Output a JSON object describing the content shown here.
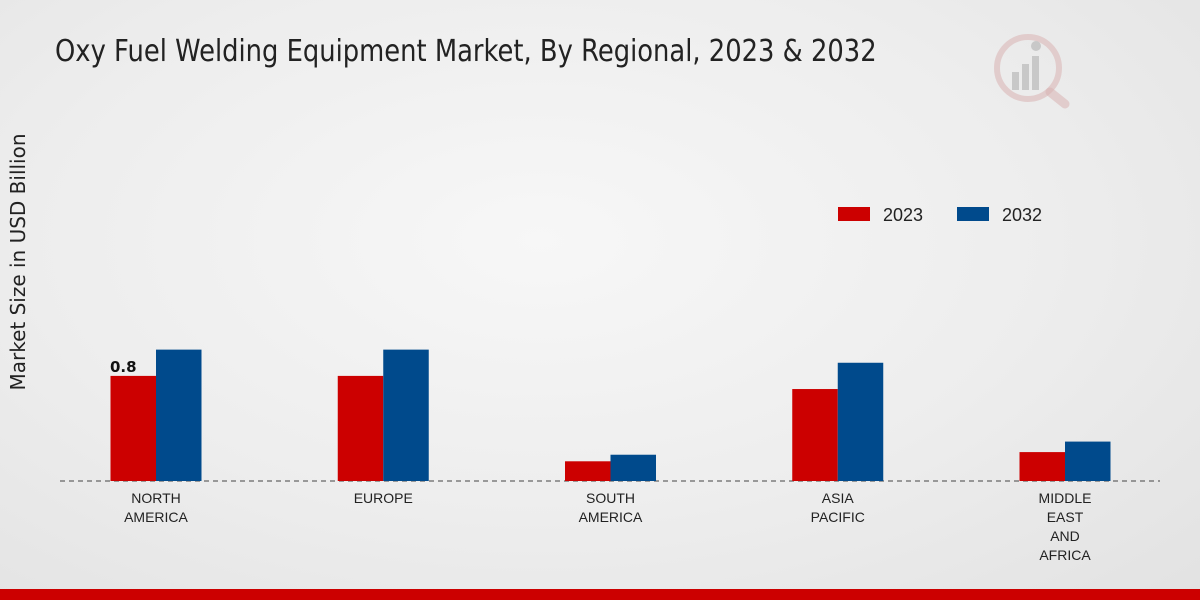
{
  "chart_data": {
    "type": "bar",
    "title": "Oxy Fuel Welding Equipment Market, By Regional, 2023 & 2032",
    "xlabel": "",
    "ylabel": "Market Size in USD Billion",
    "categories": [
      [
        "NORTH",
        "AMERICA"
      ],
      [
        "EUROPE"
      ],
      [
        "SOUTH",
        "AMERICA"
      ],
      [
        "ASIA",
        "PACIFIC"
      ],
      [
        "MIDDLE",
        "EAST",
        "AND",
        "AFRICA"
      ]
    ],
    "series": [
      {
        "name": "2023",
        "color": "#cc0000",
        "values": [
          0.8,
          0.8,
          0.15,
          0.7,
          0.22
        ]
      },
      {
        "name": "2032",
        "color": "#004a8c",
        "values": [
          1.0,
          1.0,
          0.2,
          0.9,
          0.3
        ]
      }
    ],
    "data_labels": [
      {
        "series": 0,
        "index": 0,
        "text": "0.8"
      }
    ],
    "ylim": [
      0,
      2.9
    ],
    "grid": false,
    "legend_position": "top-right"
  },
  "footer": {
    "color": "#cc0000"
  }
}
